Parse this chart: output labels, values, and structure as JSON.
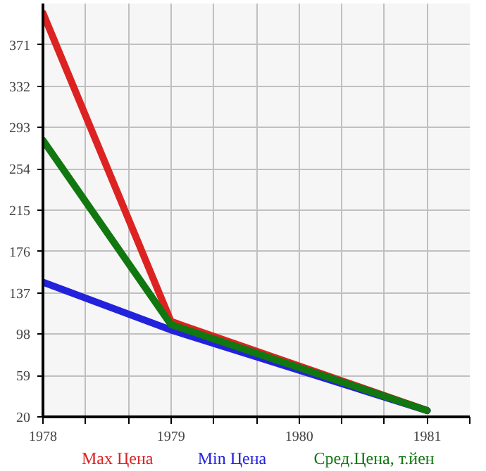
{
  "chart_data": {
    "type": "line",
    "x": [
      1978,
      1979,
      1981
    ],
    "series": [
      {
        "name": "Max Цена",
        "color": "#dd2222",
        "values": [
          401,
          110,
          26
        ]
      },
      {
        "name": "Min Цена",
        "color": "#2222dd",
        "values": [
          147,
          102,
          26
        ]
      },
      {
        "name": "Сред.Цена, т.йен",
        "color": "#117711",
        "values": [
          281,
          107,
          26
        ]
      }
    ],
    "xlim": [
      1978,
      1981.333
    ],
    "xticks": [
      1978,
      {
        "value": 1978.333,
        "label": null
      },
      {
        "value": 1978.667,
        "label": null
      },
      1979,
      {
        "value": 1979.333,
        "label": null
      },
      {
        "value": 1979.667,
        "label": null
      },
      1980,
      {
        "value": 1980.333,
        "label": null
      },
      {
        "value": 1980.667,
        "label": null
      },
      1981,
      {
        "value": 1981.333,
        "label": null
      }
    ],
    "ylim": [
      20,
      410
    ],
    "yticks": [
      20,
      59,
      98,
      137,
      176,
      215,
      254,
      293,
      332,
      371
    ],
    "grid": true,
    "legend": "bottom",
    "marker": "none",
    "line_style": "solid"
  }
}
